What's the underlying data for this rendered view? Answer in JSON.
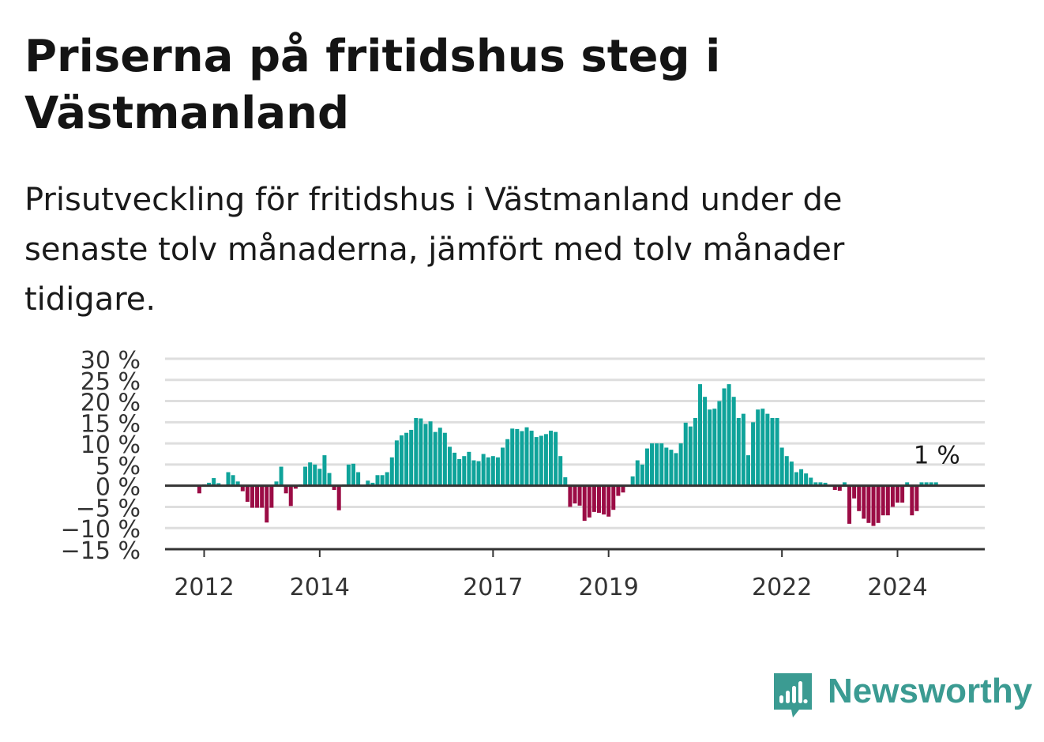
{
  "header": {
    "title": "Priserna på fritidshus steg i Västmanland",
    "subtitle": "Prisutveckling för fritidshus i Västmanland under de senaste tolv månaderna, jämfört med tolv månader tidigare."
  },
  "chart_data": {
    "type": "bar",
    "ylim": [
      -15,
      30
    ],
    "yticks": [
      30,
      25,
      20,
      15,
      10,
      5,
      0,
      -5,
      -10,
      -15
    ],
    "ytick_labels": [
      "30 %",
      "25 %",
      "20 %",
      "15 %",
      "10 %",
      "5 %",
      "0 %",
      "−5 %",
      "−10 %",
      "−15 %"
    ],
    "xticks": [
      {
        "label": "2012",
        "index": 0
      },
      {
        "label": "2014",
        "index": 24
      },
      {
        "label": "2017",
        "index": 60
      },
      {
        "label": "2019",
        "index": 84
      },
      {
        "label": "2022",
        "index": 120
      },
      {
        "label": "2024",
        "index": 144
      }
    ],
    "end_label": "1 %",
    "grid": true,
    "positive_color": "#0fa39a",
    "negative_color": "#9b0c45",
    "start_offset": -1,
    "values": [
      -1.8,
      0.3,
      0.7,
      1.8,
      0.6,
      0.0,
      3.2,
      2.5,
      1.0,
      -1.3,
      -3.8,
      -5.2,
      -5.2,
      -5.2,
      -8.7,
      -5.2,
      1.0,
      4.5,
      -1.8,
      -4.8,
      -0.7,
      0.3,
      4.5,
      5.5,
      5.0,
      4.0,
      7.2,
      3.0,
      -1.0,
      -5.8,
      0.3,
      5.0,
      5.2,
      3.2,
      0.0,
      1.2,
      0.7,
      2.5,
      2.5,
      3.2,
      6.7,
      10.7,
      11.9,
      12.5,
      13.2,
      16.0,
      15.9,
      14.6,
      15.2,
      12.7,
      13.7,
      12.5,
      9.2,
      7.8,
      6.3,
      7.0,
      8.0,
      6.0,
      5.8,
      7.5,
      6.7,
      7.0,
      6.7,
      9.0,
      11.0,
      13.5,
      13.4,
      12.9,
      13.8,
      13.0,
      11.5,
      11.8,
      12.2,
      13.0,
      12.7,
      7.0,
      2.0,
      -5.0,
      -4.2,
      -4.7,
      -8.3,
      -7.5,
      -6.2,
      -6.4,
      -6.8,
      -7.3,
      -5.7,
      -2.4,
      -1.6,
      0.0,
      2.2,
      6.0,
      5.0,
      8.8,
      10.0,
      10.0,
      10.0,
      9.0,
      8.5,
      7.7,
      10.0,
      14.9,
      14.0,
      16.0,
      24.0,
      21.0,
      18.0,
      18.2,
      20.0,
      23.0,
      24.0,
      21.0,
      16.0,
      17.0,
      7.2,
      15.0,
      18.0,
      18.2,
      17.0,
      16.0,
      16.0,
      9.0,
      7.0,
      5.7,
      3.2,
      3.9,
      2.9,
      1.9,
      0.8,
      0.8,
      0.7,
      0.0,
      -1.0,
      -1.2,
      0.8,
      -9.0,
      -3.0,
      -6.0,
      -7.8,
      -8.8,
      -9.5,
      -8.8,
      -7.0,
      -7.0,
      -5.0,
      -4.0,
      -4.0,
      0.8,
      -7.0,
      -6.0,
      0.8,
      0.8,
      0.8,
      0.8
    ]
  },
  "brand": {
    "name": "Newsworthy",
    "color": "#3b9b92",
    "icon": "bar-chart-speech-bubble-icon"
  }
}
